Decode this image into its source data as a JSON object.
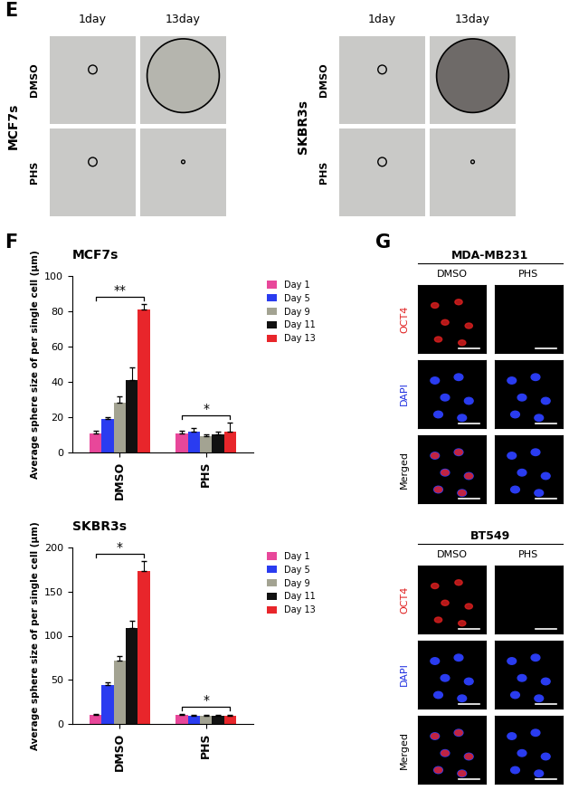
{
  "panel_labels": [
    "E",
    "F",
    "G"
  ],
  "sphere_images": [
    {
      "title": "MCF7s",
      "columns": [
        "1day",
        "13day"
      ],
      "rows": [
        "DMSO",
        "PHS"
      ]
    },
    {
      "title": "SKBR3s",
      "columns": [
        "1day",
        "13day"
      ],
      "rows": [
        "DMSO",
        "PHS"
      ]
    }
  ],
  "staining_images": [
    {
      "title": "MDA-MB231",
      "columns": [
        "DMSO",
        "PHS"
      ],
      "rows": [
        {
          "name": "OCT4",
          "color": "#e02020"
        },
        {
          "name": "DAPI",
          "color": "#2030e0"
        },
        {
          "name": "Merged",
          "color": "#000000"
        }
      ]
    },
    {
      "title": "BT549",
      "columns": [
        "DMSO",
        "PHS"
      ],
      "rows": [
        {
          "name": "OCT4",
          "color": "#e02020"
        },
        {
          "name": "DAPI",
          "color": "#2030e0"
        },
        {
          "name": "Merged",
          "color": "#000000"
        }
      ]
    }
  ],
  "chart_data": [
    {
      "type": "bar",
      "title": "MCF7s",
      "y_label": "Average sphere size of per single cell (µm)",
      "categories": [
        "DMSO",
        "PHS"
      ],
      "series": [
        {
          "name": "Day 1",
          "color": "#e8479a",
          "values": [
            11,
            11
          ],
          "errors": [
            1.5,
            1.5
          ]
        },
        {
          "name": "Day 5",
          "color": "#2a3cf0",
          "values": [
            19,
            12
          ],
          "errors": [
            1,
            2
          ]
        },
        {
          "name": "Day 9",
          "color": "#a3a392",
          "values": [
            28,
            9
          ],
          "errors": [
            4,
            1.5
          ]
        },
        {
          "name": "Day 11",
          "color": "#111111",
          "values": [
            41,
            10
          ],
          "errors": [
            7,
            2
          ]
        },
        {
          "name": "Day 13",
          "color": "#e8262b",
          "values": [
            81,
            12
          ],
          "errors": [
            3,
            5
          ]
        }
      ],
      "significance": [
        {
          "category": "DMSO",
          "label": "**"
        },
        {
          "category": "PHS",
          "label": "*"
        }
      ],
      "ylim": [
        0,
        100
      ],
      "yticks": [
        0,
        20,
        40,
        60,
        80,
        100
      ],
      "legend": "upper left"
    },
    {
      "type": "bar",
      "title": "SKBR3s",
      "y_label": "Average sphere size of per single cell (µm)",
      "categories": [
        "DMSO",
        "PHS"
      ],
      "series": [
        {
          "name": "Day 1",
          "color": "#e8479a",
          "values": [
            10,
            10
          ],
          "errors": [
            1,
            1
          ]
        },
        {
          "name": "Day 5",
          "color": "#2a3cf0",
          "values": [
            44,
            9
          ],
          "errors": [
            3,
            1
          ]
        },
        {
          "name": "Day 9",
          "color": "#a3a392",
          "values": [
            72,
            9
          ],
          "errors": [
            5,
            1
          ]
        },
        {
          "name": "Day 11",
          "color": "#111111",
          "values": [
            109,
            9
          ],
          "errors": [
            8,
            1
          ]
        },
        {
          "name": "Day 13",
          "color": "#e8262b",
          "values": [
            173,
            9
          ],
          "errors": [
            12,
            1
          ]
        }
      ],
      "significance": [
        {
          "category": "DMSO",
          "label": "*"
        },
        {
          "category": "PHS",
          "label": "*"
        }
      ],
      "ylim": [
        0,
        200
      ],
      "yticks": [
        0,
        50,
        100,
        150,
        200
      ],
      "legend": "upper left"
    }
  ]
}
